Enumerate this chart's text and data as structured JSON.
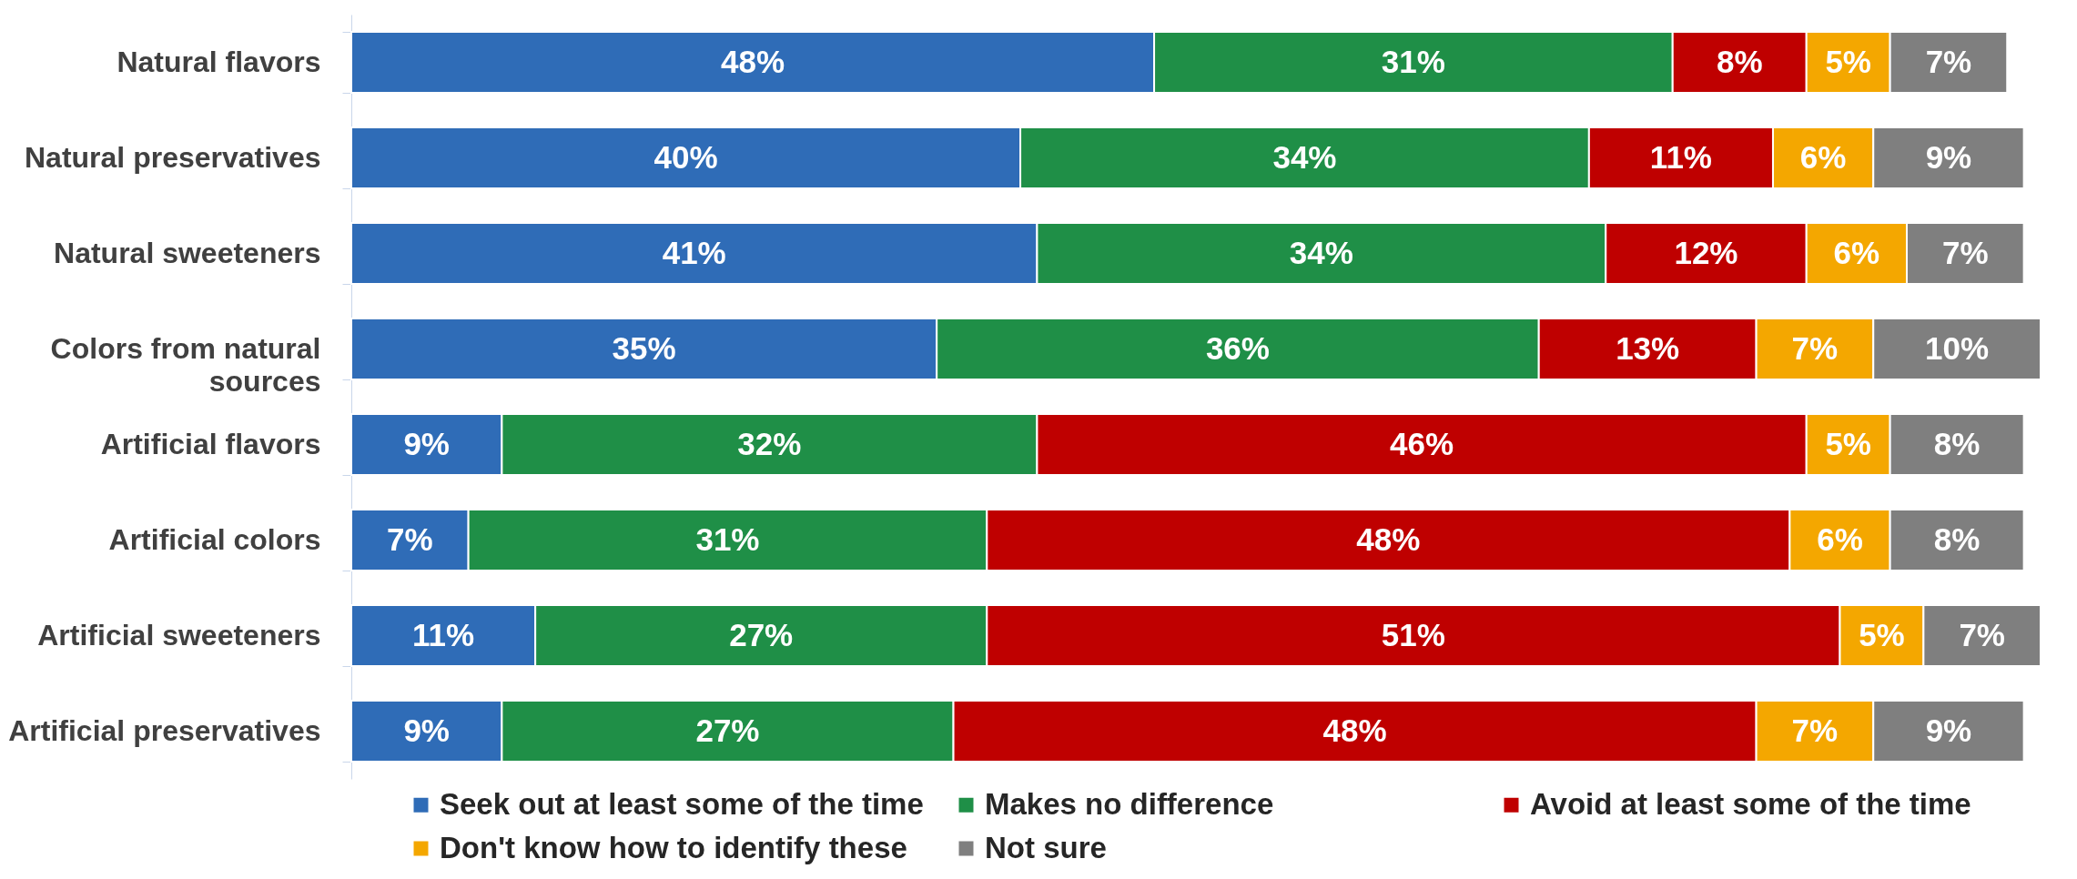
{
  "chart_data": {
    "type": "bar",
    "orientation": "horizontal",
    "stacked": true,
    "tick_labels": "y",
    "legend": "bottom",
    "categories": [
      "Natural flavors",
      "Natural preservatives",
      "Natural sweeteners",
      "Colors from natural sources",
      "Artificial flavors",
      "Artificial colors",
      "Artificial sweeteners",
      "Artificial preservatives"
    ],
    "series": [
      {
        "name": "Seek out at least some of the time",
        "color": "#2f6cb7",
        "values": [
          48,
          40,
          41,
          35,
          9,
          7,
          11,
          9
        ],
        "value_labels": [
          "48%",
          "40%",
          "41%",
          "35%",
          "9%",
          "7%",
          "11%",
          "9%"
        ]
      },
      {
        "name": "Makes no difference",
        "color": "#1f8f47",
        "values": [
          31,
          34,
          34,
          36,
          32,
          31,
          27,
          27
        ],
        "value_labels": [
          "31%",
          "34%",
          "34%",
          "36%",
          "32%",
          "31%",
          "27%",
          "27%"
        ]
      },
      {
        "name": "Avoid at least some of the time",
        "color": "#bf0000",
        "values": [
          8,
          11,
          12,
          13,
          46,
          48,
          51,
          48
        ],
        "value_labels": [
          "8%",
          "11%",
          "12%",
          "13%",
          "46%",
          "48%",
          "51%",
          "48%"
        ]
      },
      {
        "name": "Don't know how to identify these",
        "color": "#f4a700",
        "values": [
          5,
          6,
          6,
          7,
          5,
          6,
          5,
          7
        ],
        "value_labels": [
          "5%",
          "6%",
          "6%",
          "7%",
          "5%",
          "6%",
          "5%",
          "7%"
        ]
      },
      {
        "name": "Not sure",
        "color": "#7f7f7f",
        "values": [
          7,
          9,
          7,
          10,
          8,
          8,
          7,
          9
        ],
        "value_labels": [
          "7%",
          "9%",
          "7%",
          "10%",
          "8%",
          "8%",
          "7%",
          "9%"
        ]
      }
    ]
  }
}
